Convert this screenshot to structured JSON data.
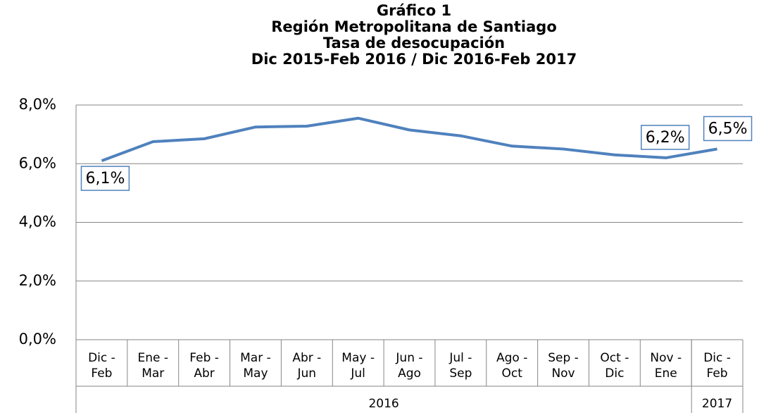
{
  "chart_data": {
    "type": "line",
    "title": [
      "Gráfico 1",
      "Región Metropolitana de Santiago",
      "Tasa de desocupación",
      "Dic 2015-Feb 2016 / Dic 2016-Feb 2017"
    ],
    "categories": [
      "Dic - Feb",
      "Ene - Mar",
      "Feb - Abr",
      "Mar - May",
      "Abr - Jun",
      "May - Jul",
      "Jun - Ago",
      "Jul - Sep",
      "Ago - Oct",
      "Sep - Nov",
      "Oct - Dic",
      "Nov - Ene",
      "Dic - Feb"
    ],
    "year_groups": [
      {
        "label": "2016",
        "span": 12
      },
      {
        "label": "2017",
        "span": 1
      }
    ],
    "series": [
      {
        "name": "Tasa de desocupación",
        "color": "#4f81bd",
        "values": [
          6.1,
          6.75,
          6.85,
          7.25,
          7.28,
          7.55,
          7.15,
          6.95,
          6.6,
          6.5,
          6.3,
          6.2,
          6.5
        ],
        "value_labels": [
          "6,1%",
          null,
          null,
          null,
          null,
          null,
          null,
          null,
          null,
          null,
          null,
          "6,2%",
          "6,5%"
        ]
      }
    ],
    "ylim": [
      0,
      8
    ],
    "yticks": [
      {
        "value": 0,
        "label": "0,0%"
      },
      {
        "value": 2,
        "label": "2,0%"
      },
      {
        "value": 4,
        "label": "4,0%"
      },
      {
        "value": 6,
        "label": "6,0%"
      },
      {
        "value": 8,
        "label": "8,0%"
      }
    ],
    "grid": true
  }
}
